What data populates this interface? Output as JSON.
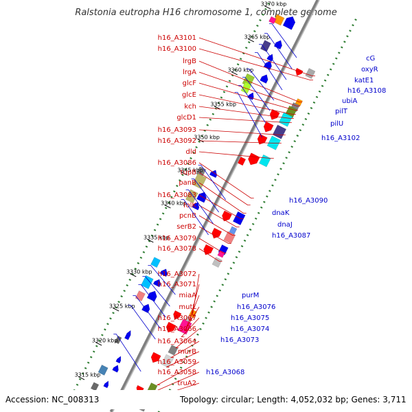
{
  "title": "Ralstonia eutropha H16 chromosome 1, complete genome",
  "accession": "Accession: NC_008313",
  "summary": "Topology: circular; Length: 4,052,032 bp; Genes: 3,711",
  "colors": {
    "backbone": "#7f7f7f",
    "dot_track": "#2e7d32",
    "left_labels": "#cc0000",
    "right_labels": "#0000cc",
    "forward_genes": "#ff0000",
    "reverse_genes": "#0000ee"
  },
  "ticks": [
    "3370 kbp",
    "3365 kbp",
    "3360 kbp",
    "3355 kbp",
    "3350 kbp",
    "3345 kbp",
    "3340 kbp",
    "3335 kbp",
    "3330 kbp",
    "3325 kbp",
    "3320 kbp",
    "3315 kbp"
  ],
  "left_genes": [
    "h16_A3101",
    "h16_A3100",
    "lrgB",
    "lrgA",
    "glcF",
    "glcE",
    "kch",
    "glcD1",
    "h16_A3093",
    "h16_A3092",
    "dld",
    "h16_A3086",
    "tupB",
    "panB",
    "h16_A3083",
    "folK",
    "pcnB",
    "serB2",
    "h16_A3079",
    "h16_A3078",
    "h16_A3072",
    "h16_A3071",
    "miaA",
    "mutL",
    "h16_A3067",
    "h16_A3066",
    "h16_A3064",
    "murB",
    "h16_A3059",
    "h16_A3058",
    "truA2"
  ],
  "right_genes": [
    "cG",
    "oxyR",
    "katE1",
    "h16_A3108",
    "ubiA",
    "pilT",
    "pilU",
    "h16_A3102",
    "h16_A3090",
    "dnaK",
    "dnaJ",
    "h16_A3087",
    "purM",
    "h16_A3076",
    "h16_A3075",
    "h16_A3074",
    "h16_A3073",
    "h16_A3068"
  ]
}
